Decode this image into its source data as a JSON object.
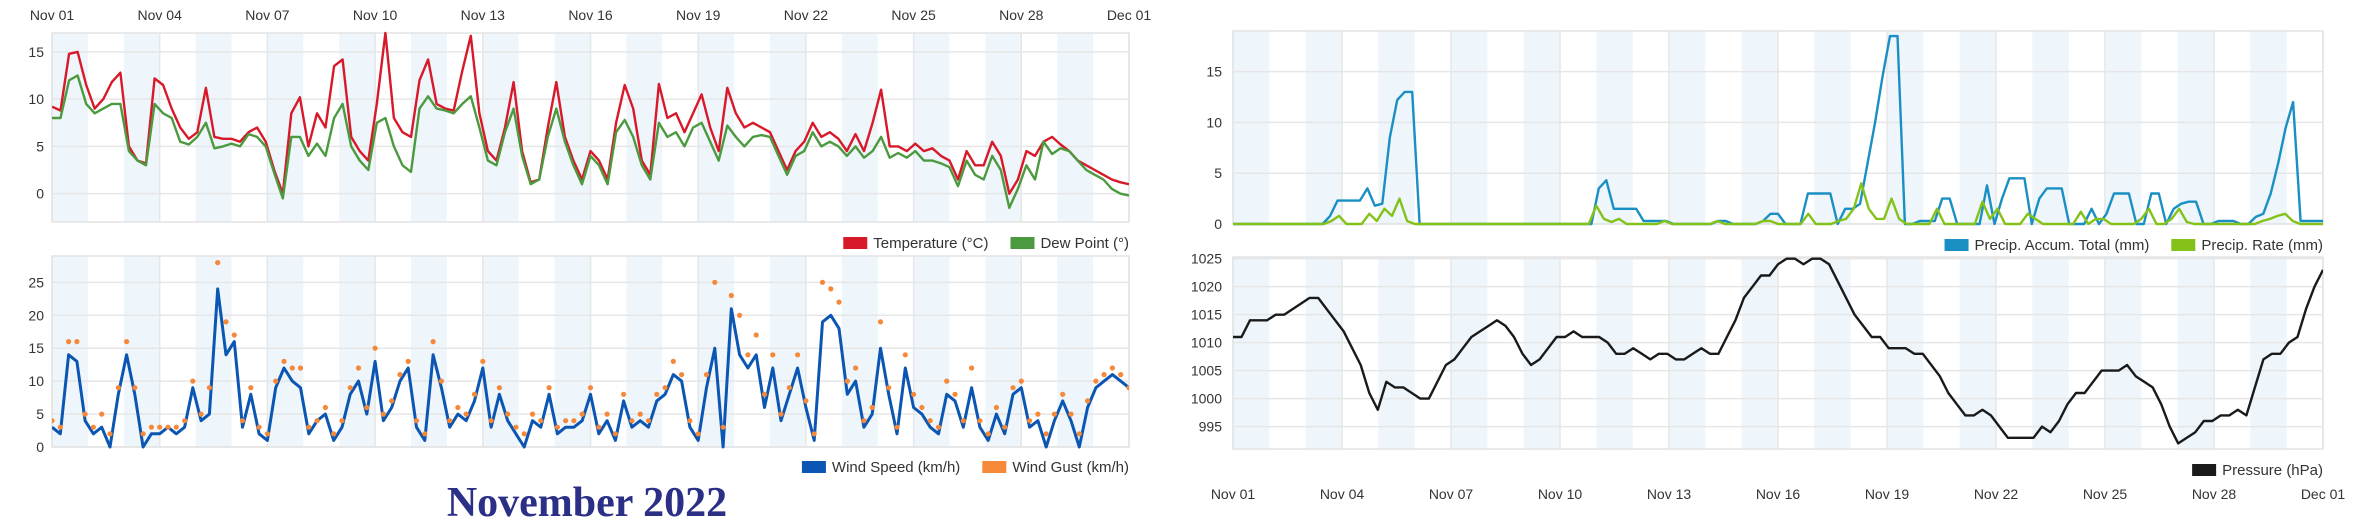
{
  "page_title": "November 2022",
  "colors": {
    "band": "#eef5fb",
    "grid": "#e6e6e6",
    "temperature": "#d7192a",
    "dew_point": "#4c9a3f",
    "wind_speed": "#0b56b3",
    "wind_gust": "#f6883a",
    "precip_accum": "#1a8fc4",
    "precip_rate": "#84c21a",
    "pressure": "#1a1a1a",
    "title": "#2b2f86"
  },
  "x_axis": {
    "start_day": 1,
    "end_day": 31,
    "tick_labels": [
      "Nov 01",
      "Nov 04",
      "Nov 07",
      "Nov 10",
      "Nov 13",
      "Nov 16",
      "Nov 19",
      "Nov 22",
      "Nov 25",
      "Nov 28",
      "Dec 01"
    ],
    "tick_days": [
      1,
      4,
      7,
      10,
      13,
      16,
      19,
      22,
      25,
      28,
      31
    ],
    "shaded_days": [
      1,
      3,
      5,
      7,
      9,
      11,
      13,
      15,
      17,
      19,
      21,
      23,
      25,
      27,
      29
    ]
  },
  "chart_data": [
    {
      "id": "temperature",
      "type": "line",
      "title": "",
      "xlabel": "",
      "ylabel": "",
      "ylim": [
        -3,
        17
      ],
      "yticks": [
        0,
        5,
        10,
        15
      ],
      "grid": true,
      "legend": "bottom-right",
      "samples_per_day": 4,
      "series": [
        {
          "name": "Temperature (°C)",
          "color_key": "temperature",
          "values": [
            9.2,
            8.8,
            14.8,
            15.0,
            11.5,
            9.0,
            10.0,
            11.8,
            12.8,
            5.0,
            3.5,
            3.2,
            12.2,
            11.5,
            9.0,
            7.0,
            5.8,
            6.5,
            11.2,
            6.0,
            5.8,
            5.8,
            5.5,
            6.5,
            7.0,
            5.5,
            2.5,
            0.0,
            8.5,
            10.2,
            5.0,
            8.5,
            7.0,
            13.5,
            14.2,
            6.0,
            4.5,
            3.5,
            9.5,
            17.0,
            8.0,
            6.5,
            6.0,
            12.0,
            14.2,
            9.5,
            9.0,
            8.8,
            13.0,
            16.7,
            8.5,
            4.5,
            3.5,
            7.0,
            11.8,
            4.5,
            1.2,
            1.5,
            7.0,
            11.8,
            6.0,
            3.5,
            1.5,
            4.5,
            3.5,
            1.5,
            7.5,
            11.5,
            9.0,
            3.5,
            2.0,
            11.6,
            8.0,
            8.5,
            6.5,
            8.5,
            10.5,
            7.0,
            4.5,
            11.2,
            8.5,
            7.0,
            7.5,
            7.0,
            6.5,
            4.5,
            2.5,
            4.5,
            5.5,
            7.5,
            6.0,
            6.5,
            5.8,
            4.5,
            6.3,
            4.5,
            7.5,
            11.0,
            5.0,
            5.0,
            4.5,
            5.3,
            4.5,
            4.8,
            4.0,
            3.5,
            1.5,
            4.5,
            3.0,
            3.0,
            5.5,
            4.0,
            0.0,
            1.5,
            4.5,
            4.0,
            5.5,
            6.0,
            5.2,
            4.5,
            3.5,
            3.0,
            2.5,
            2.0,
            1.5,
            1.2,
            1.0
          ]
        },
        {
          "name": "Dew Point (°)",
          "color_key": "dew_point",
          "values": [
            8.0,
            8.0,
            12.0,
            12.5,
            9.5,
            8.5,
            9.0,
            9.5,
            9.5,
            4.5,
            3.5,
            3.0,
            9.5,
            8.5,
            8.0,
            5.5,
            5.2,
            6.0,
            7.5,
            4.8,
            5.0,
            5.3,
            5.0,
            6.3,
            6.0,
            5.0,
            2.2,
            -0.5,
            6.0,
            6.0,
            4.0,
            5.3,
            4.0,
            8.0,
            9.5,
            5.0,
            3.5,
            2.5,
            7.5,
            8.0,
            5.0,
            3.0,
            2.3,
            9.0,
            10.3,
            9.0,
            8.8,
            8.5,
            9.5,
            10.3,
            7.0,
            3.5,
            3.0,
            6.5,
            9.0,
            4.0,
            1.0,
            1.5,
            6.0,
            9.0,
            5.5,
            3.0,
            1.0,
            4.0,
            3.0,
            1.0,
            6.5,
            7.8,
            6.0,
            3.0,
            1.5,
            7.5,
            6.0,
            6.5,
            5.0,
            7.0,
            7.5,
            5.5,
            3.5,
            7.2,
            6.0,
            5.0,
            6.0,
            6.2,
            6.0,
            4.0,
            2.0,
            4.0,
            4.5,
            6.5,
            5.0,
            5.5,
            5.0,
            4.0,
            5.0,
            3.8,
            4.5,
            6.0,
            3.8,
            4.3,
            3.8,
            4.5,
            3.5,
            3.5,
            3.2,
            2.8,
            0.8,
            3.5,
            2.0,
            1.5,
            4.0,
            2.5,
            -1.5,
            0.5,
            3.0,
            1.5,
            5.5,
            4.2,
            4.8,
            4.5,
            3.5,
            2.5,
            2.0,
            1.5,
            0.5,
            0.0,
            -0.2
          ]
        }
      ]
    },
    {
      "id": "wind",
      "type": "line",
      "title": "",
      "xlabel": "",
      "ylabel": "",
      "ylim": [
        0,
        29
      ],
      "yticks": [
        0,
        5,
        10,
        15,
        20,
        25
      ],
      "grid": true,
      "legend": "bottom-right",
      "samples_per_day": 4,
      "series": [
        {
          "name": "Wind Speed (km/h)",
          "color_key": "wind_speed",
          "style": "line",
          "values": [
            3,
            2,
            14,
            13,
            4,
            2,
            3,
            0,
            8,
            14,
            8,
            0,
            2,
            2,
            3,
            2,
            3,
            9,
            4,
            5,
            24,
            14,
            16,
            3,
            8,
            2,
            1,
            9,
            12,
            10,
            9,
            2,
            4,
            5,
            1,
            3,
            8,
            10,
            5,
            13,
            4,
            6,
            10,
            12,
            3,
            1,
            14,
            9,
            3,
            5,
            4,
            7,
            12,
            3,
            8,
            4,
            2,
            0,
            4,
            3,
            8,
            2,
            3,
            3,
            4,
            8,
            2,
            4,
            1,
            7,
            3,
            4,
            3,
            7,
            8,
            11,
            10,
            3,
            1,
            9,
            15,
            0,
            21,
            14,
            12,
            14,
            6,
            12,
            4,
            8,
            12,
            6,
            1,
            19,
            20,
            18,
            8,
            10,
            3,
            5,
            15,
            8,
            2,
            12,
            6,
            5,
            3,
            2,
            8,
            7,
            3,
            9,
            3,
            1,
            5,
            2,
            8,
            9,
            3,
            4,
            0,
            4,
            7,
            4,
            0,
            6,
            9,
            10,
            11,
            10,
            9
          ]
        },
        {
          "name": "Wind Gust (km/h)",
          "color_key": "wind_gust",
          "style": "dots",
          "values": [
            4,
            3,
            16,
            16,
            5,
            3,
            5,
            2,
            9,
            16,
            9,
            2,
            3,
            3,
            3,
            3,
            4,
            10,
            5,
            9,
            28,
            19,
            17,
            4,
            9,
            3,
            2,
            10,
            13,
            12,
            12,
            3,
            4,
            6,
            2,
            4,
            9,
            12,
            6,
            15,
            5,
            7,
            11,
            13,
            4,
            2,
            16,
            10,
            4,
            6,
            5,
            8,
            13,
            4,
            9,
            5,
            3,
            2,
            5,
            4,
            9,
            3,
            4,
            4,
            5,
            9,
            3,
            5,
            2,
            8,
            4,
            5,
            4,
            8,
            9,
            13,
            11,
            4,
            2,
            11,
            25,
            3,
            23,
            20,
            14,
            17,
            8,
            14,
            5,
            9,
            14,
            7,
            2,
            25,
            24,
            22,
            10,
            12,
            4,
            6,
            19,
            9,
            3,
            14,
            8,
            6,
            4,
            3,
            10,
            8,
            4,
            12,
            4,
            2,
            6,
            3,
            9,
            10,
            4,
            5,
            2,
            5,
            8,
            5,
            2,
            7,
            10,
            11,
            12,
            11,
            9
          ]
        }
      ]
    },
    {
      "id": "precipitation",
      "type": "line",
      "title": "",
      "xlabel": "",
      "ylabel": "",
      "ylim": [
        0,
        19
      ],
      "yticks": [
        0,
        5,
        10,
        15
      ],
      "grid": true,
      "legend": "bottom-right",
      "samples_per_day": 4,
      "series": [
        {
          "name": "Precip. Accum. Total (mm)",
          "color_key": "precip_accum",
          "values": [
            0,
            0,
            0,
            0,
            0,
            0,
            0,
            0,
            0,
            0,
            0,
            0,
            0,
            0.8,
            2.3,
            2.3,
            2.3,
            2.3,
            3.5,
            1.8,
            2.0,
            8.5,
            12.2,
            13.0,
            13.0,
            0,
            0,
            0,
            0,
            0,
            0,
            0,
            0,
            0,
            0,
            0,
            0,
            0,
            0,
            0,
            0,
            0,
            0,
            0,
            0,
            0,
            0,
            0,
            0,
            3.5,
            4.3,
            1.5,
            1.5,
            1.5,
            1.5,
            0.3,
            0.3,
            0.3,
            0.3,
            0,
            0,
            0,
            0,
            0,
            0,
            0.3,
            0.3,
            0,
            0,
            0,
            0,
            0.3,
            1.0,
            1.0,
            0,
            0,
            0,
            3.0,
            3.0,
            3.0,
            3.0,
            0,
            1.5,
            1.5,
            2.0,
            6.0,
            10.0,
            14.5,
            18.5,
            18.5,
            0,
            0,
            0.3,
            0.3,
            0.3,
            2.5,
            2.5,
            0,
            0,
            0,
            0,
            3.8,
            0,
            2.5,
            4.5,
            4.5,
            4.5,
            0,
            2.5,
            3.5,
            3.5,
            3.5,
            0,
            0,
            0,
            1.5,
            0,
            1.0,
            3.0,
            3.0,
            3.0,
            0,
            0,
            3.0,
            3.0,
            0,
            1.5,
            2.0,
            2.2,
            2.2,
            0,
            0,
            0.3,
            0.3,
            0.3,
            0,
            0,
            0.7,
            1.0,
            3.0,
            6.0,
            9.5,
            12.0,
            0.3,
            0.3,
            0.3,
            0.3
          ]
        },
        {
          "name": "Precip. Rate (mm)",
          "color_key": "precip_rate",
          "values": [
            0,
            0,
            0,
            0,
            0,
            0,
            0,
            0,
            0,
            0,
            0,
            0,
            0,
            0.3,
            0.8,
            0,
            0,
            0,
            1.0,
            0.3,
            1.5,
            0.8,
            2.5,
            0.3,
            0,
            0,
            0,
            0,
            0,
            0,
            0,
            0,
            0,
            0,
            0,
            0,
            0,
            0,
            0,
            0,
            0,
            0,
            0,
            0,
            0,
            0,
            0,
            0,
            1.8,
            0.5,
            0.2,
            0.5,
            0,
            0,
            0,
            0,
            0,
            0.3,
            0,
            0,
            0,
            0,
            0,
            0,
            0.3,
            0,
            0,
            0,
            0,
            0,
            0.3,
            0.3,
            0,
            0,
            0,
            0,
            1.0,
            0,
            0,
            0,
            0.3,
            0.5,
            1.5,
            4.0,
            1.5,
            0.5,
            0.5,
            2.5,
            0.5,
            0,
            0,
            0,
            0,
            1.5,
            0,
            0,
            0,
            0,
            0,
            2.2,
            0.5,
            1.5,
            0,
            0,
            0,
            1.0,
            0.5,
            0,
            0,
            0,
            0,
            0,
            1.2,
            0,
            0.5,
            0.5,
            0,
            0,
            0,
            0,
            0.5,
            1.5,
            0,
            0,
            0.5,
            1.5,
            0.2,
            0,
            0,
            0,
            0,
            0,
            0,
            0,
            0,
            0,
            0.3,
            0.5,
            0.8,
            1.0,
            0.3,
            0,
            0,
            0,
            0
          ]
        }
      ]
    },
    {
      "id": "pressure",
      "type": "line",
      "title": "",
      "xlabel": "",
      "ylabel": "",
      "ylim": [
        991,
        1025.3
      ],
      "yticks": [
        995,
        1000,
        1005,
        1010,
        1015,
        1020,
        1025
      ],
      "grid": true,
      "legend": "bottom-right",
      "samples_per_day": 4,
      "series": [
        {
          "name": "Pressure (hPa)",
          "color_key": "pressure",
          "values": [
            1011,
            1011,
            1014,
            1014,
            1014,
            1015,
            1015,
            1016,
            1017,
            1018,
            1018,
            1016,
            1014,
            1012,
            1009,
            1006,
            1001,
            998,
            1003,
            1002,
            1002,
            1001,
            1000,
            1000,
            1003,
            1006,
            1007,
            1009,
            1011,
            1012,
            1013,
            1014,
            1013,
            1011,
            1008,
            1006,
            1007,
            1009,
            1011,
            1011,
            1012,
            1011,
            1011,
            1011,
            1010,
            1008,
            1008,
            1009,
            1008,
            1007,
            1008,
            1008,
            1007,
            1007,
            1008,
            1009,
            1008,
            1008,
            1011,
            1014,
            1018,
            1020,
            1022,
            1022,
            1024,
            1025,
            1025,
            1024,
            1025,
            1025,
            1024,
            1021,
            1018,
            1015,
            1013,
            1011,
            1011,
            1009,
            1009,
            1009,
            1008,
            1008,
            1006,
            1004,
            1001,
            999,
            997,
            997,
            998,
            997,
            995,
            993,
            993,
            993,
            993,
            995,
            994,
            996,
            999,
            1001,
            1001,
            1003,
            1005,
            1005,
            1005,
            1006,
            1004,
            1003,
            1002,
            999,
            995,
            992,
            993,
            994,
            996,
            996,
            997,
            997,
            998,
            997,
            1002,
            1007,
            1008,
            1008,
            1010,
            1011,
            1016,
            1020,
            1023
          ]
        }
      ]
    }
  ]
}
